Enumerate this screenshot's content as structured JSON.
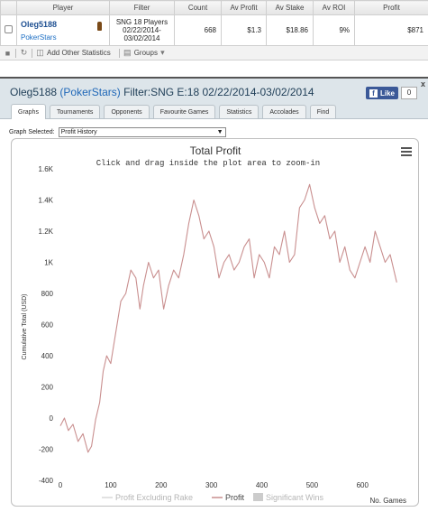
{
  "stats_table": {
    "headers": [
      "",
      "Player",
      "Filter",
      "Count",
      "Av Profit",
      "Av Stake",
      "Av ROI",
      "Profit"
    ],
    "row": {
      "player_name": "Oleg5188",
      "site": "PokerStars",
      "filter_line1": "SNG 18 Players",
      "filter_line2": "02/22/2014-",
      "filter_line3": "03/02/2014",
      "count": "668",
      "av_profit": "$1.3",
      "av_stake": "$18.86",
      "av_roi": "9%",
      "profit": "$871"
    }
  },
  "toolbar": {
    "add_stats_label": "Add Other Statistics",
    "groups_label": "Groups"
  },
  "window": {
    "title_player": "Oleg5188",
    "title_site": "PokerStars",
    "title_filter": "Filter:SNG E:18 02/22/2014-03/02/2014",
    "fb_like_label": "Like",
    "fb_count": "0",
    "close_label": "x"
  },
  "tabs": [
    {
      "label": "Graphs",
      "active": true
    },
    {
      "label": "Tournaments",
      "active": false
    },
    {
      "label": "Opponents",
      "active": false
    },
    {
      "label": "Favourite Games",
      "active": false
    },
    {
      "label": "Statistics",
      "active": false
    },
    {
      "label": "Accolades",
      "active": false
    },
    {
      "label": "Find",
      "active": false
    }
  ],
  "graph_selector": {
    "label": "Graph Selected:",
    "value": "Profit History"
  },
  "colors": {
    "profit_line": "#c98f8f",
    "excl_rake_line": "#d8d8d8",
    "significant_wins": "#cccccc",
    "title_bar": "#dde5ea",
    "fb_blue": "#3b5998"
  },
  "chart_data": {
    "type": "line",
    "title": "Total Profit",
    "subtitle": "Click and drag inside the plot area to zoom-in",
    "ylabel": "Cumulative Total (USD)",
    "xlabel": "No. Games",
    "xlim": [
      0,
      680
    ],
    "ylim": [
      -400,
      1600
    ],
    "x_ticks": [
      0,
      100,
      200,
      300,
      400,
      500,
      600
    ],
    "y_ticks": [
      -400,
      -200,
      0,
      200,
      400,
      600,
      800,
      1000,
      1200,
      1400,
      1600
    ],
    "y_tick_labels": [
      "-400",
      "-200",
      "0",
      "200",
      "400",
      "600",
      "800",
      "1K",
      "1.2K",
      "1.4K",
      "1.6K"
    ],
    "grid": false,
    "legend_position": "bottom",
    "legend": [
      "Profit Excluding Rake",
      "Profit",
      "Significant Wins"
    ],
    "series": [
      {
        "name": "Profit",
        "x": [
          0,
          8,
          16,
          25,
          35,
          45,
          55,
          62,
          70,
          78,
          85,
          92,
          100,
          110,
          120,
          130,
          140,
          150,
          158,
          165,
          175,
          185,
          195,
          205,
          215,
          225,
          235,
          245,
          255,
          265,
          275,
          285,
          295,
          305,
          315,
          325,
          335,
          345,
          355,
          365,
          375,
          385,
          395,
          405,
          415,
          425,
          435,
          445,
          455,
          465,
          475,
          485,
          495,
          505,
          515,
          525,
          535,
          545,
          555,
          565,
          575,
          585,
          595,
          605,
          615,
          625,
          635,
          645,
          655,
          668
        ],
        "y": [
          -50,
          0,
          -80,
          -40,
          -150,
          -100,
          -220,
          -180,
          -10,
          100,
          300,
          400,
          350,
          550,
          750,
          800,
          950,
          900,
          700,
          850,
          1000,
          900,
          950,
          700,
          850,
          950,
          900,
          1050,
          1250,
          1400,
          1300,
          1150,
          1200,
          1100,
          900,
          1000,
          1050,
          950,
          1000,
          1100,
          1150,
          900,
          1050,
          1000,
          900,
          1100,
          1050,
          1200,
          1000,
          1050,
          1350,
          1400,
          1500,
          1350,
          1250,
          1300,
          1150,
          1200,
          1000,
          1100,
          950,
          900,
          1000,
          1100,
          1000,
          1200,
          1100,
          1000,
          1050,
          871
        ]
      }
    ]
  }
}
